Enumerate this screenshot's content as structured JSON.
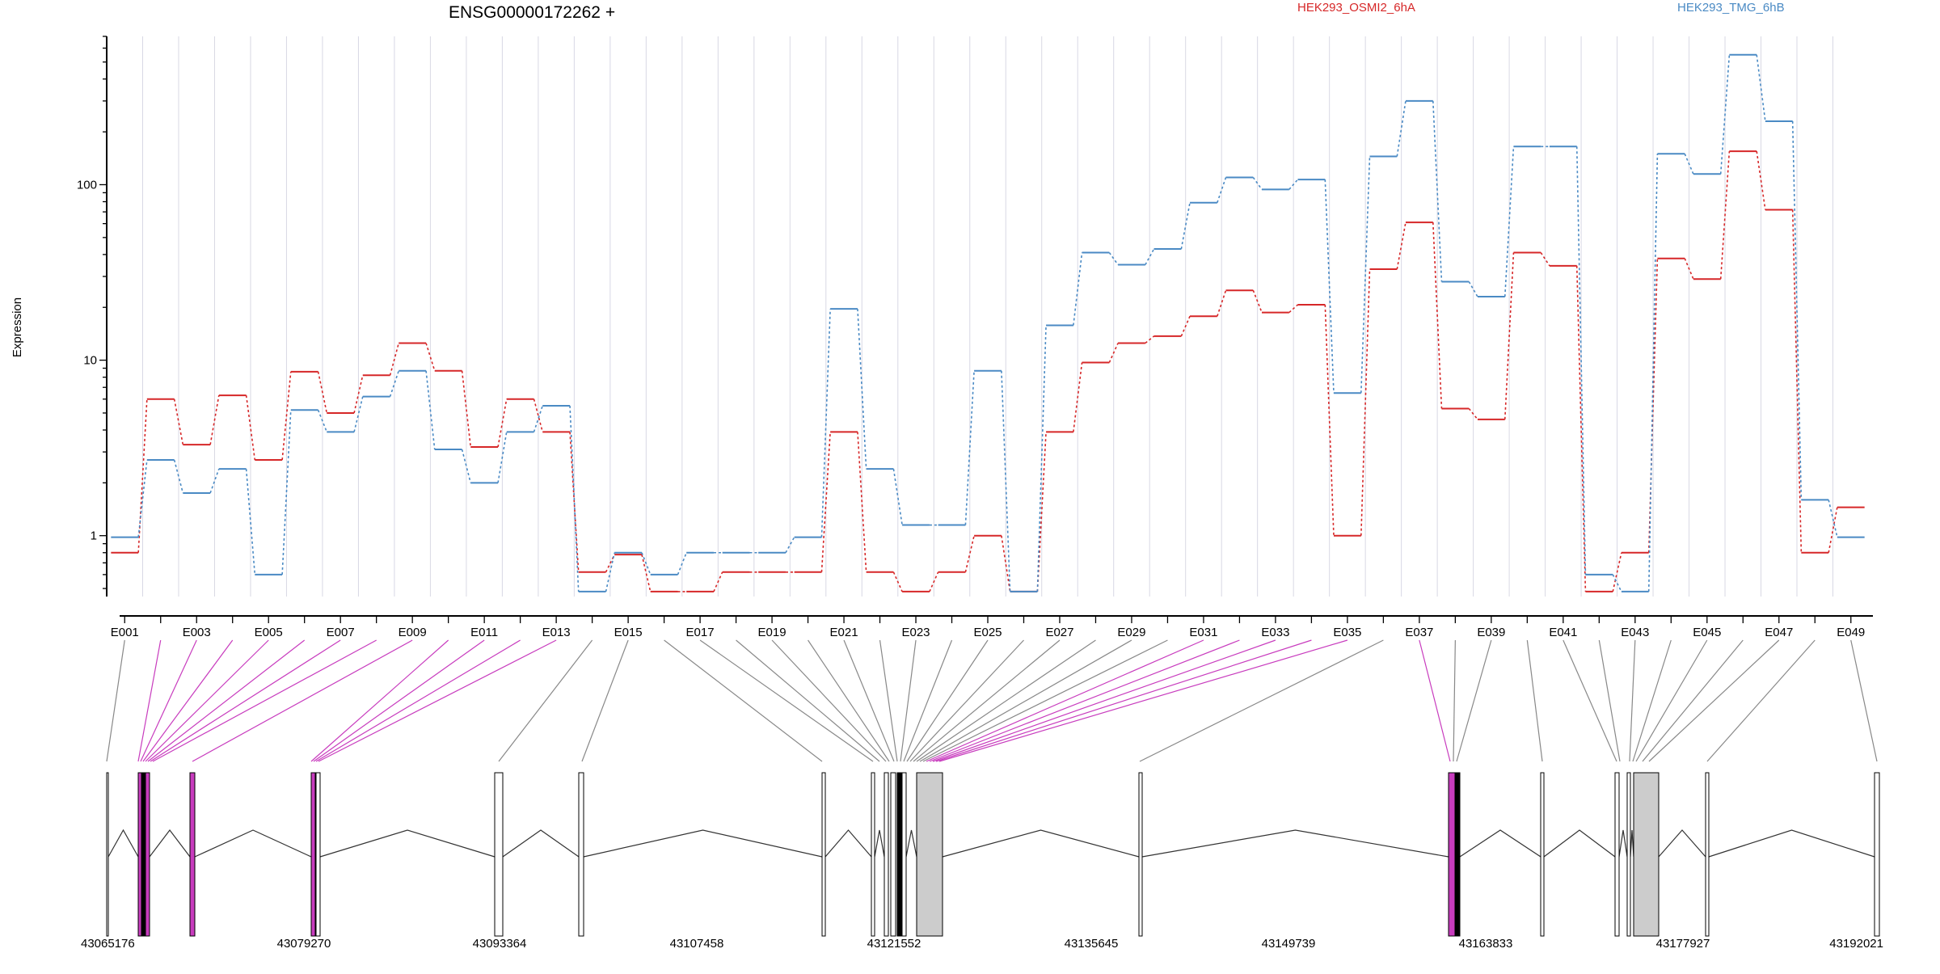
{
  "chart_data": {
    "type": "line",
    "title": "ENSG00000172262 +",
    "ylabel": "Expression",
    "y_scale": "log",
    "ylim": [
      0.45,
      700
    ],
    "y_ticks": [
      {
        "value": 1,
        "label": "1"
      },
      {
        "value": 10,
        "label": "10"
      },
      {
        "value": 100,
        "label": "100"
      }
    ],
    "grid": "vertical",
    "legend_position": "top",
    "exons": [
      "E001",
      "E002",
      "E003",
      "E004",
      "E005",
      "E006",
      "E007",
      "E008",
      "E009",
      "E010",
      "E011",
      "E012",
      "E013",
      "E014",
      "E015",
      "E016",
      "E017",
      "E018",
      "E019",
      "E020",
      "E021",
      "E022",
      "E023",
      "E024",
      "E025",
      "E026",
      "E027",
      "E028",
      "E029",
      "E030",
      "E031",
      "E032",
      "E033",
      "E034",
      "E035",
      "E036",
      "E037",
      "E038",
      "E039",
      "E040",
      "E041",
      "E042",
      "E043",
      "E044",
      "E045",
      "E046",
      "E047",
      "E048",
      "E049"
    ],
    "labeled_exons": [
      "E001",
      "E003",
      "E005",
      "E007",
      "E009",
      "E011",
      "E013",
      "E015",
      "E017",
      "E019",
      "E021",
      "E023",
      "E025",
      "E027",
      "E029",
      "E031",
      "E033",
      "E035",
      "E037",
      "E039",
      "E041",
      "E043",
      "E045",
      "E047",
      "E049"
    ],
    "series": [
      {
        "name": "HEK293_OSMI2_6hA",
        "color": "#d62728",
        "values": [
          0.8,
          6,
          3.3,
          6.3,
          2.7,
          8.6,
          5,
          8.2,
          12.5,
          8.7,
          3.2,
          6,
          3.9,
          0.62,
          0.78,
          0.48,
          0.48,
          0.62,
          0.62,
          0.62,
          3.9,
          0.62,
          0.48,
          0.62,
          1,
          0.48,
          3.9,
          9.7,
          12.5,
          13.7,
          17.8,
          25,
          18.7,
          20.7,
          1,
          33,
          61,
          5.3,
          4.6,
          41,
          34.5,
          0.48,
          0.8,
          38,
          29,
          155,
          72,
          0.8,
          1.45
        ]
      },
      {
        "name": "HEK293_TMG_6hB",
        "color": "#4a8ac4",
        "values": [
          0.98,
          2.7,
          1.75,
          2.4,
          0.6,
          5.2,
          3.9,
          6.2,
          8.7,
          3.1,
          2,
          3.9,
          5.5,
          0.48,
          0.8,
          0.6,
          0.8,
          0.8,
          0.8,
          0.98,
          19.6,
          2.4,
          1.15,
          1.15,
          8.7,
          0.48,
          15.8,
          41,
          35,
          43,
          79,
          110,
          94,
          107,
          6.5,
          145,
          300,
          28,
          23,
          165,
          165,
          0.6,
          0.48,
          150,
          115,
          550,
          230,
          1.6,
          0.98
        ]
      }
    ],
    "gene_model": {
      "genomic_ticks": [
        "43065176",
        "43079270",
        "43093364",
        "43107458",
        "43121552",
        "43135645",
        "43149739",
        "43163833",
        "43177927",
        "43192021"
      ],
      "highlight_color": "#c83cbe",
      "filled_color": "#cccccc"
    }
  }
}
